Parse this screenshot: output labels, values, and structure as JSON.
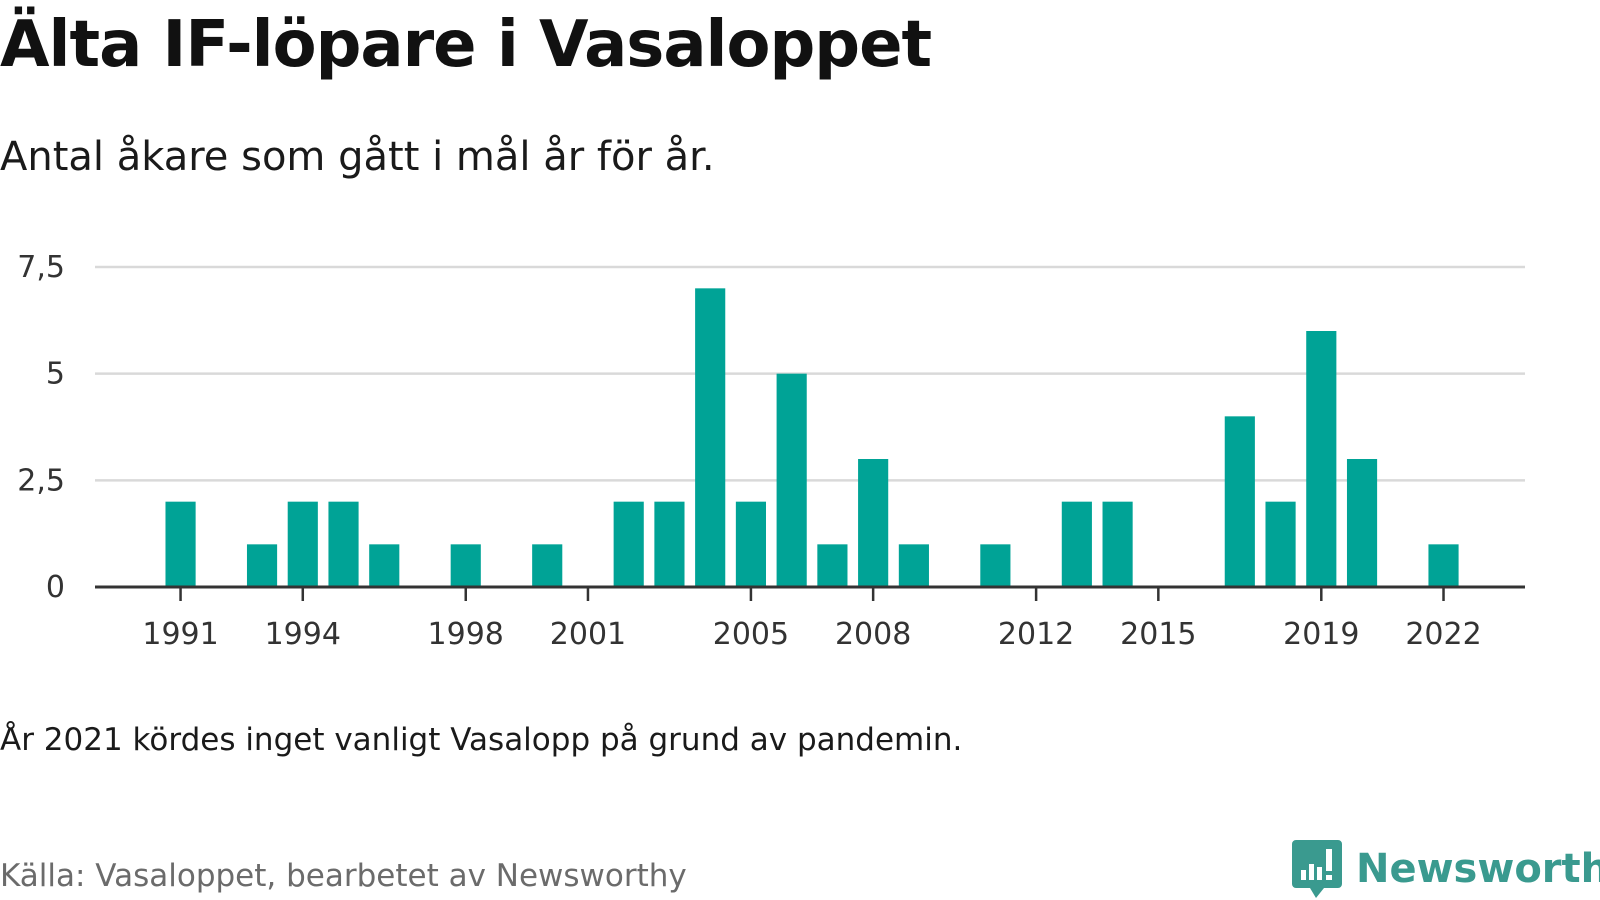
{
  "header": {
    "title": "Älta IF-löpare i Vasaloppet",
    "subtitle": "Antal åkare som gått i mål år för år."
  },
  "footer": {
    "note": "År 2021 kördes inget vanligt Vasalopp på grund av pandemin.",
    "source": "Källa: Vasaloppet, bearbetet av Newsworthy",
    "brand": "Newsworthy",
    "brand_icon": "newsworthy-logo-icon"
  },
  "colors": {
    "bar": "#00a396",
    "grid": "#d9d9d9",
    "axis": "#333333",
    "brand": "#3a9a8f"
  },
  "chart_data": {
    "type": "bar",
    "x": [
      1991,
      1993,
      1994,
      1995,
      1996,
      1998,
      2000,
      2002,
      2003,
      2004,
      2005,
      2006,
      2007,
      2008,
      2009,
      2011,
      2013,
      2014,
      2017,
      2018,
      2019,
      2020,
      2022
    ],
    "values": [
      2,
      1,
      2,
      2,
      1,
      1,
      1,
      2,
      2,
      7,
      2,
      5,
      1,
      3,
      1,
      1,
      2,
      2,
      4,
      2,
      6,
      3,
      1
    ],
    "x_ticks": [
      1991,
      1994,
      1998,
      2001,
      2005,
      2008,
      2012,
      2015,
      2019,
      2022
    ],
    "y_ticks": [
      0,
      2.5,
      5,
      7.5
    ],
    "y_tick_labels": [
      "0",
      "2,5",
      "5",
      "7,5"
    ],
    "xlim": [
      1988.9,
      2024
    ],
    "ylim": [
      0,
      7.5
    ],
    "grid": true
  }
}
